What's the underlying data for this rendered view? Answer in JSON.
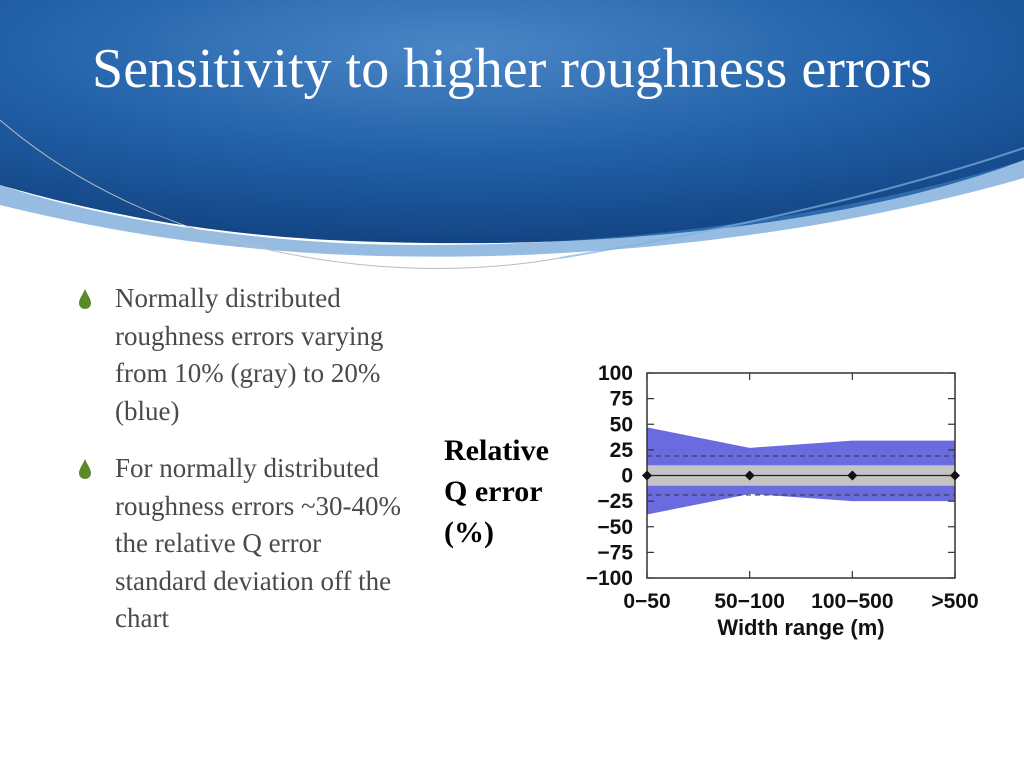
{
  "slide": {
    "title": "Sensitivity to higher roughness errors",
    "bullets": [
      {
        "text": "Normally distributed roughness errors varying from 10% (gray) to 20% (blue)",
        "icon": "drop-icon"
      },
      {
        "text": "For normally distributed roughness errors ~30-40% the relative Q error standard deviation off the chart",
        "icon": "drop-icon"
      }
    ],
    "y_axis_label": "Relative Q error (%)",
    "colors": {
      "header": "#1f5aa0",
      "bullet_icon": "#5a8a2a",
      "blue_band": "#6b6be0",
      "gray_band": "#c4c4c4"
    }
  },
  "chart_data": {
    "type": "area",
    "categories": [
      "0−50",
      "50−100",
      "100−500",
      ">500"
    ],
    "xlabel": "Width range (m)",
    "ylabel": "",
    "ylim": [
      -100,
      100
    ],
    "y_ticks": [
      "100",
      "75",
      "50",
      "25",
      "0",
      "−25",
      "−50",
      "−75",
      "−100"
    ],
    "y_tick_values": [
      100,
      75,
      50,
      25,
      0,
      -25,
      -50,
      -75,
      -100
    ],
    "series": [
      {
        "name": "blue band",
        "upper": [
          47,
          27,
          34,
          34
        ],
        "lower": [
          -38,
          -18,
          -25,
          -25
        ]
      },
      {
        "name": "gray band",
        "upper": [
          10,
          10,
          10,
          10
        ],
        "lower": [
          -10,
          -10,
          -10,
          -10
        ]
      },
      {
        "name": "dashed bounds",
        "upper": [
          19,
          19,
          19,
          19
        ],
        "lower": [
          -19,
          -19,
          -19,
          -19
        ]
      },
      {
        "name": "mean",
        "values": [
          0,
          0,
          0,
          0
        ]
      }
    ],
    "grid": false
  }
}
